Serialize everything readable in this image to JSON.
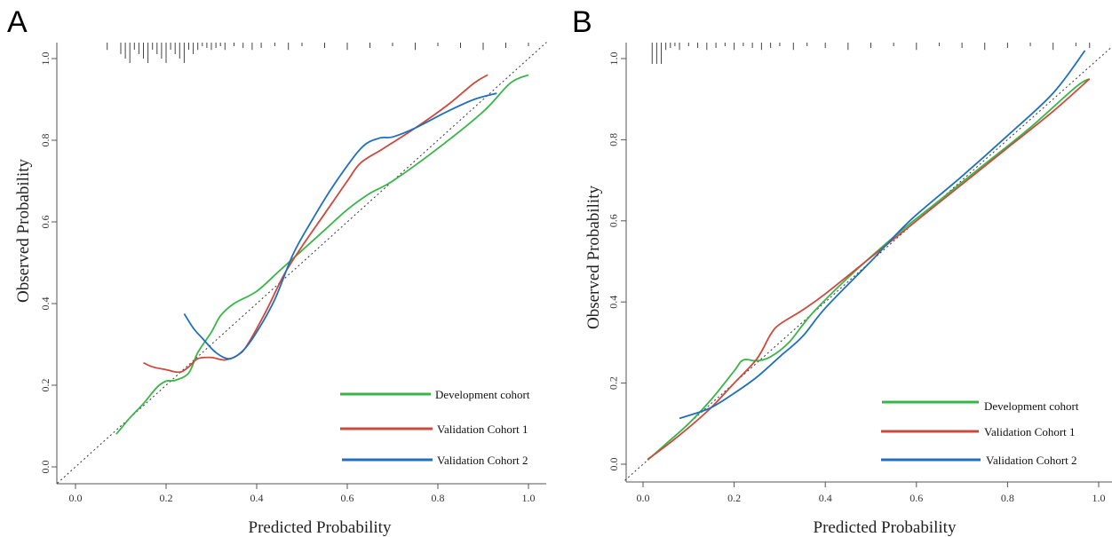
{
  "panels": [
    {
      "letter": "A"
    },
    {
      "letter": "B"
    }
  ],
  "colors": {
    "development": "#3ab54a",
    "validation1": "#cc4a3c",
    "validation2": "#1f6fbf",
    "reference": "#333333",
    "axis": "#555555"
  },
  "chart_data": [
    {
      "type": "line",
      "panel": "A",
      "title": "",
      "xlabel": "Predicted Probability",
      "ylabel": "Observed Probability",
      "xlim": [
        -0.04,
        1.04
      ],
      "ylim": [
        -0.04,
        1.04
      ],
      "xticks": [
        "0.0",
        "0.2",
        "0.4",
        "0.6",
        "0.8",
        "1.0"
      ],
      "yticks": [
        "0.0",
        "0.2",
        "0.4",
        "0.6",
        "0.8",
        "1.0"
      ],
      "grid": false,
      "legend_position": "bottom-right",
      "reference_line": {
        "style": "dotted diagonal",
        "from": [
          -0.04,
          -0.04
        ],
        "to": [
          1.04,
          1.04
        ]
      },
      "series": [
        {
          "name": "Development cohort",
          "color": "#3ab54a",
          "points": [
            [
              0.09,
              0.08
            ],
            [
              0.12,
              0.12
            ],
            [
              0.15,
              0.155
            ],
            [
              0.18,
              0.195
            ],
            [
              0.2,
              0.21
            ],
            [
              0.22,
              0.212
            ],
            [
              0.25,
              0.23
            ],
            [
              0.27,
              0.28
            ],
            [
              0.3,
              0.33
            ],
            [
              0.32,
              0.37
            ],
            [
              0.35,
              0.4
            ],
            [
              0.4,
              0.43
            ],
            [
              0.45,
              0.48
            ],
            [
              0.5,
              0.53
            ],
            [
              0.55,
              0.58
            ],
            [
              0.6,
              0.63
            ],
            [
              0.65,
              0.67
            ],
            [
              0.7,
              0.7
            ],
            [
              0.8,
              0.78
            ],
            [
              0.9,
              0.87
            ],
            [
              0.96,
              0.94
            ],
            [
              1.0,
              0.96
            ]
          ]
        },
        {
          "name": "Validation Cohort 1",
          "color": "#cc4a3c",
          "points": [
            [
              0.15,
              0.255
            ],
            [
              0.17,
              0.245
            ],
            [
              0.2,
              0.238
            ],
            [
              0.23,
              0.232
            ],
            [
              0.25,
              0.245
            ],
            [
              0.27,
              0.265
            ],
            [
              0.3,
              0.268
            ],
            [
              0.33,
              0.262
            ],
            [
              0.36,
              0.275
            ],
            [
              0.38,
              0.3
            ],
            [
              0.42,
              0.38
            ],
            [
              0.46,
              0.47
            ],
            [
              0.5,
              0.54
            ],
            [
              0.55,
              0.62
            ],
            [
              0.6,
              0.7
            ],
            [
              0.63,
              0.745
            ],
            [
              0.68,
              0.78
            ],
            [
              0.75,
              0.83
            ],
            [
              0.82,
              0.885
            ],
            [
              0.88,
              0.94
            ],
            [
              0.91,
              0.96
            ]
          ]
        },
        {
          "name": "Validation Cohort 2",
          "color": "#1f6fbf",
          "points": [
            [
              0.24,
              0.375
            ],
            [
              0.26,
              0.34
            ],
            [
              0.28,
              0.315
            ],
            [
              0.31,
              0.28
            ],
            [
              0.34,
              0.265
            ],
            [
              0.37,
              0.285
            ],
            [
              0.4,
              0.33
            ],
            [
              0.44,
              0.41
            ],
            [
              0.48,
              0.52
            ],
            [
              0.52,
              0.6
            ],
            [
              0.57,
              0.69
            ],
            [
              0.63,
              0.78
            ],
            [
              0.67,
              0.805
            ],
            [
              0.7,
              0.808
            ],
            [
              0.75,
              0.83
            ],
            [
              0.82,
              0.87
            ],
            [
              0.88,
              0.9
            ],
            [
              0.93,
              0.915
            ]
          ]
        }
      ],
      "rug_marks": [
        0.07,
        0.1,
        0.11,
        0.12,
        0.13,
        0.14,
        0.15,
        0.16,
        0.17,
        0.18,
        0.19,
        0.2,
        0.21,
        0.22,
        0.23,
        0.24,
        0.25,
        0.26,
        0.27,
        0.28,
        0.29,
        0.3,
        0.31,
        0.32,
        0.33,
        0.35,
        0.37,
        0.39,
        0.41,
        0.44,
        0.47,
        0.5,
        0.55,
        0.6,
        0.65,
        0.7,
        0.75,
        0.8,
        0.85,
        0.9,
        0.95,
        1.0
      ]
    },
    {
      "type": "line",
      "panel": "B",
      "title": "",
      "xlabel": "Predicted Probability",
      "ylabel": "Observed Probability",
      "xlim": [
        -0.04,
        1.04
      ],
      "ylim": [
        -0.04,
        1.04
      ],
      "xticks": [
        "0.0",
        "0.2",
        "0.4",
        "0.6",
        "0.8",
        "1.0"
      ],
      "yticks": [
        "0.0",
        "0.2",
        "0.4",
        "0.6",
        "0.8",
        "1.0"
      ],
      "grid": false,
      "legend_position": "bottom-right",
      "reference_line": {
        "style": "dotted diagonal",
        "from": [
          -0.04,
          -0.04
        ],
        "to": [
          1.04,
          1.04
        ]
      },
      "series": [
        {
          "name": "Development cohort",
          "color": "#3ab54a",
          "points": [
            [
              0.01,
              0.01
            ],
            [
              0.05,
              0.05
            ],
            [
              0.1,
              0.1
            ],
            [
              0.15,
              0.16
            ],
            [
              0.2,
              0.23
            ],
            [
              0.22,
              0.257
            ],
            [
              0.25,
              0.255
            ],
            [
              0.28,
              0.265
            ],
            [
              0.32,
              0.3
            ],
            [
              0.37,
              0.37
            ],
            [
              0.45,
              0.46
            ],
            [
              0.55,
              0.56
            ],
            [
              0.65,
              0.65
            ],
            [
              0.75,
              0.74
            ],
            [
              0.85,
              0.83
            ],
            [
              0.95,
              0.93
            ],
            [
              0.98,
              0.95
            ]
          ]
        },
        {
          "name": "Validation Cohort 1",
          "color": "#cc4a3c",
          "points": [
            [
              0.01,
              0.012
            ],
            [
              0.05,
              0.045
            ],
            [
              0.1,
              0.09
            ],
            [
              0.15,
              0.14
            ],
            [
              0.2,
              0.2
            ],
            [
              0.25,
              0.26
            ],
            [
              0.28,
              0.32
            ],
            [
              0.3,
              0.345
            ],
            [
              0.35,
              0.38
            ],
            [
              0.4,
              0.42
            ],
            [
              0.5,
              0.51
            ],
            [
              0.6,
              0.6
            ],
            [
              0.7,
              0.69
            ],
            [
              0.8,
              0.78
            ],
            [
              0.9,
              0.87
            ],
            [
              0.98,
              0.95
            ]
          ]
        },
        {
          "name": "Validation Cohort 2",
          "color": "#1f6fbf",
          "points": [
            [
              0.08,
              0.113
            ],
            [
              0.1,
              0.12
            ],
            [
              0.15,
              0.14
            ],
            [
              0.2,
              0.175
            ],
            [
              0.25,
              0.215
            ],
            [
              0.3,
              0.265
            ],
            [
              0.35,
              0.315
            ],
            [
              0.4,
              0.385
            ],
            [
              0.5,
              0.5
            ],
            [
              0.55,
              0.56
            ],
            [
              0.6,
              0.615
            ],
            [
              0.7,
              0.71
            ],
            [
              0.8,
              0.81
            ],
            [
              0.9,
              0.915
            ],
            [
              0.97,
              1.02
            ]
          ]
        }
      ],
      "rug_marks": [
        0.02,
        0.03,
        0.04,
        0.05,
        0.06,
        0.07,
        0.08,
        0.1,
        0.12,
        0.14,
        0.16,
        0.18,
        0.2,
        0.22,
        0.24,
        0.26,
        0.28,
        0.3,
        0.33,
        0.36,
        0.4,
        0.45,
        0.5,
        0.55,
        0.6,
        0.65,
        0.7,
        0.75,
        0.8,
        0.85,
        0.9,
        0.95,
        0.98
      ]
    }
  ]
}
